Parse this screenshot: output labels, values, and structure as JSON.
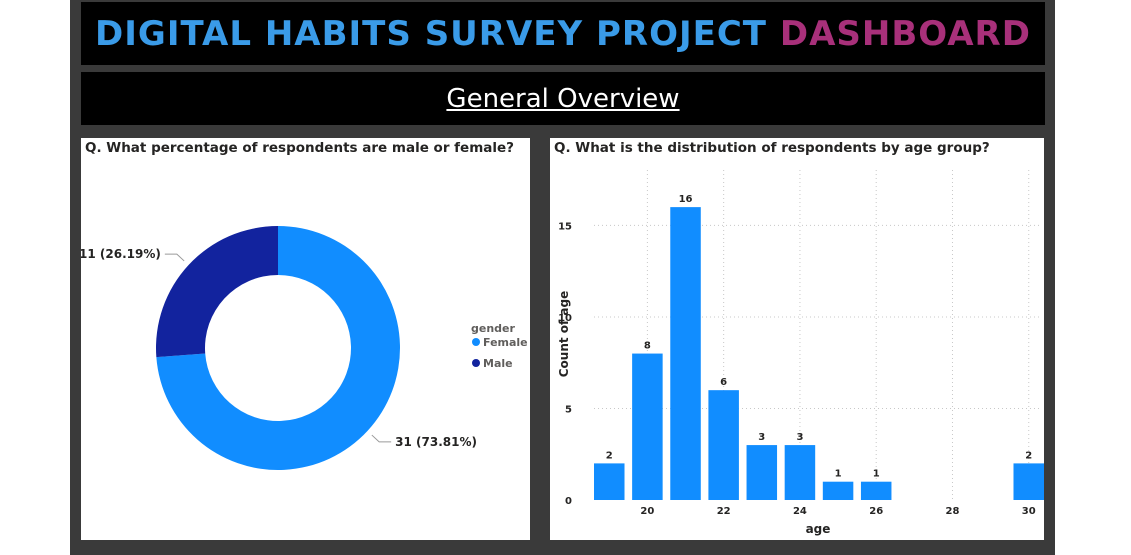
{
  "header": {
    "title_part1": "DIGITAL HABITS SURVEY PROJECT ",
    "title_part2": "DASHBOARD",
    "subtitle": "General Overview"
  },
  "colors": {
    "title_part1": "#3a9be8",
    "title_part2": "#a8307a",
    "bar": "#118dff",
    "female": "#118dff",
    "male": "#12239e"
  },
  "chart_data": [
    {
      "type": "pie",
      "title": "Q. What percentage of respondents are male or female?",
      "legend_title": "gender",
      "legend_position": "right",
      "donut": true,
      "slices": [
        {
          "name": "Female",
          "value": 31,
          "label": "31 (73.81%)",
          "color": "#118dff"
        },
        {
          "name": "Male",
          "value": 11,
          "label": "11 (26.19%)",
          "color": "#12239e"
        }
      ]
    },
    {
      "type": "bar",
      "title": "Q. What is the distribution of respondents by age group?",
      "xlabel": "age",
      "ylabel": "Count of age",
      "x": [
        19,
        20,
        21,
        22,
        23,
        24,
        25,
        26,
        30
      ],
      "values": [
        2,
        8,
        16,
        6,
        3,
        3,
        1,
        1,
        2
      ],
      "xlim": [
        18.6,
        30.4
      ],
      "ylim": [
        0,
        17.7
      ],
      "xticks": [
        20,
        22,
        24,
        26,
        28,
        30
      ],
      "yticks": [
        0,
        5,
        10,
        15
      ],
      "grid": true,
      "data_labels": true,
      "color": "#118dff"
    }
  ]
}
